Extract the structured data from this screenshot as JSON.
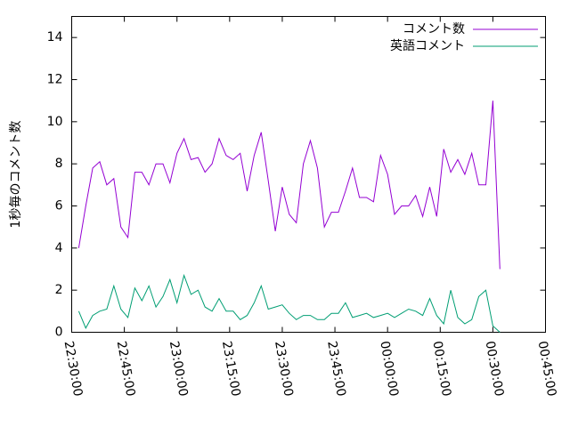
{
  "chart_data": {
    "type": "line",
    "y_label": "1秒毎のコメント数",
    "x": [
      "22:32:00",
      "22:34:00",
      "22:36:00",
      "22:38:00",
      "22:40:00",
      "22:42:00",
      "22:44:00",
      "22:46:00",
      "22:48:00",
      "22:50:00",
      "22:52:00",
      "22:54:00",
      "22:56:00",
      "22:58:00",
      "23:00:00",
      "23:02:00",
      "23:04:00",
      "23:06:00",
      "23:08:00",
      "23:10:00",
      "23:12:00",
      "23:14:00",
      "23:16:00",
      "23:18:00",
      "23:20:00",
      "23:22:00",
      "23:24:00",
      "23:26:00",
      "23:28:00",
      "23:30:00",
      "23:32:00",
      "23:34:00",
      "23:36:00",
      "23:38:00",
      "23:40:00",
      "23:42:00",
      "23:44:00",
      "23:46:00",
      "23:48:00",
      "23:50:00",
      "23:52:00",
      "23:54:00",
      "23:56:00",
      "23:58:00",
      "00:00:00",
      "00:02:00",
      "00:04:00",
      "00:06:00",
      "00:08:00",
      "00:10:00",
      "00:12:00",
      "00:14:00",
      "00:16:00",
      "00:18:00",
      "00:20:00",
      "00:22:00",
      "00:24:00",
      "00:26:00",
      "00:28:00",
      "00:30:00",
      "00:32:00"
    ],
    "series": [
      {
        "name": "コメント数",
        "color": "#9400d3",
        "values": [
          4.0,
          6.0,
          7.8,
          8.1,
          7.0,
          7.3,
          5.0,
          4.5,
          7.6,
          7.6,
          7.0,
          8.0,
          8.0,
          7.1,
          8.5,
          9.2,
          8.2,
          8.3,
          7.6,
          8.0,
          9.2,
          8.4,
          8.2,
          8.5,
          6.7,
          8.4,
          9.5,
          7.2,
          4.8,
          6.9,
          5.6,
          5.2,
          8.0,
          9.1,
          7.8,
          5.0,
          5.7,
          5.7,
          6.7,
          7.8,
          6.4,
          6.4,
          6.2,
          8.4,
          7.5,
          5.6,
          6.0,
          6.0,
          6.5,
          5.5,
          6.9,
          5.5,
          8.7,
          7.6,
          8.2,
          7.5,
          8.5,
          7.0,
          7.0,
          11.0,
          3.0
        ]
      },
      {
        "name": "英語コメント",
        "color": "#009e73",
        "values": [
          1.0,
          0.2,
          0.8,
          1.0,
          1.1,
          2.2,
          1.1,
          0.7,
          2.1,
          1.5,
          2.2,
          1.2,
          1.7,
          2.5,
          1.4,
          2.7,
          1.8,
          2.0,
          1.2,
          1.0,
          1.6,
          1.0,
          1.0,
          0.6,
          0.8,
          1.4,
          2.2,
          1.1,
          1.2,
          1.3,
          0.9,
          0.6,
          0.8,
          0.8,
          0.6,
          0.6,
          0.9,
          0.9,
          1.4,
          0.7,
          0.8,
          0.9,
          0.7,
          0.8,
          0.9,
          0.7,
          0.9,
          1.1,
          1.0,
          0.8,
          1.6,
          0.8,
          0.4,
          2.0,
          0.7,
          0.4,
          0.6,
          1.7,
          2.0,
          0.3,
          0.0
        ]
      }
    ],
    "xlim": [
      "22:30:00",
      "00:45:00"
    ],
    "xticks": [
      "22:30:00",
      "22:45:00",
      "23:00:00",
      "23:15:00",
      "23:30:00",
      "23:45:00",
      "00:00:00",
      "00:15:00",
      "00:30:00",
      "00:45:00"
    ],
    "ylim": [
      0,
      15
    ],
    "yticks": [
      0,
      2,
      4,
      6,
      8,
      10,
      12,
      14
    ],
    "legend": "top-right"
  }
}
